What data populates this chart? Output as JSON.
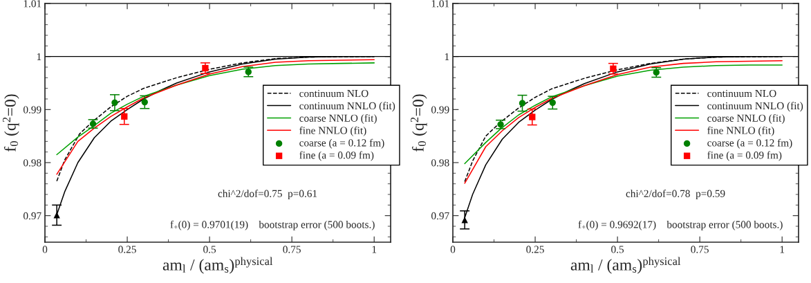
{
  "chart_data": [
    {
      "type": "line",
      "xlabel": "am$_{l}$ / (am$_{s}$)$^{physical}$",
      "ylabel": "f$_{0}$ (q$^{2}$=0)",
      "xlim": [
        0,
        1.05
      ],
      "ylim": [
        0.965,
        1.01
      ],
      "xticks": [
        0,
        0.25,
        0.5,
        0.75,
        1
      ],
      "yticks": [
        0.97,
        0.98,
        0.99,
        1,
        1.01
      ],
      "grid": false,
      "legend": "right",
      "ref_lines": [
        {
          "axis": "y",
          "value": 1,
          "color": "#000000",
          "line_style": "solid"
        }
      ],
      "annotations": [
        "chi^2/dof=0.75  p=0.61",
        "f$_{+}$(0) = 0.9701(19)    bootstrap error (500 boots.)"
      ],
      "series": [
        {
          "name": "continuum NLO",
          "color": "#000000",
          "line_style": "dashed",
          "x": [
            0.036,
            0.06,
            0.105,
            0.146,
            0.2,
            0.25,
            0.3,
            0.4,
            0.5,
            0.6,
            0.7,
            0.8,
            1.0
          ],
          "values": [
            0.9765,
            0.9805,
            0.9854,
            0.9878,
            0.9905,
            0.9925,
            0.994,
            0.996,
            0.9976,
            0.9988,
            0.9996,
            0.9999,
            1.0
          ]
        },
        {
          "name": "continuum NNLO (fit)",
          "color": "#000000",
          "line_style": "solid",
          "x": [
            0.036,
            0.06,
            0.1,
            0.15,
            0.2,
            0.25,
            0.3,
            0.35,
            0.4,
            0.5,
            0.6,
            0.7,
            0.8,
            0.9,
            1.0
          ],
          "values": [
            0.9702,
            0.9745,
            0.98,
            0.9847,
            0.9878,
            0.99,
            0.992,
            0.9936,
            0.995,
            0.9971,
            0.9986,
            0.9995,
            0.9999,
            1.0,
            1.0
          ]
        },
        {
          "name": "coarse NNLO (fit)",
          "color": "#00a000",
          "line_style": "solid",
          "x": [
            0.036,
            0.1,
            0.146,
            0.2,
            0.25,
            0.3,
            0.4,
            0.5,
            0.6,
            0.7,
            0.8,
            0.9,
            1.0
          ],
          "values": [
            0.9815,
            0.9848,
            0.9868,
            0.9893,
            0.991,
            0.9925,
            0.9946,
            0.9964,
            0.9976,
            0.9983,
            0.9986,
            0.9987,
            0.9988
          ]
        },
        {
          "name": "fine NNLO (fit)",
          "color": "#ff0000",
          "line_style": "solid",
          "x": [
            0.036,
            0.1,
            0.15,
            0.2,
            0.25,
            0.3,
            0.4,
            0.5,
            0.6,
            0.7,
            0.8,
            1.0
          ],
          "values": [
            0.9778,
            0.984,
            0.9865,
            0.9887,
            0.9905,
            0.9922,
            0.9946,
            0.9967,
            0.9981,
            0.9989,
            0.9992,
            0.9994
          ]
        },
        {
          "name": "coarse (a = 0.12 fm)",
          "type": "scatter",
          "color": "#008000",
          "marker": "circle",
          "x": [
            0.146,
            0.212,
            0.303,
            0.618
          ],
          "values": [
            0.9873,
            0.9913,
            0.9914,
            0.9971
          ],
          "errors": [
            0.0008,
            0.0015,
            0.0012,
            0.0009
          ]
        },
        {
          "name": "fine (a = 0.09 fm)",
          "type": "scatter",
          "color": "#ff0000",
          "marker": "square",
          "x": [
            0.241,
            0.487
          ],
          "values": [
            0.9887,
            0.9978
          ],
          "errors": [
            0.0015,
            0.001
          ]
        },
        {
          "type": "scatter",
          "color": "#000000",
          "marker": "triangle",
          "x": [
            0.036
          ],
          "values": [
            0.9701
          ],
          "errors": [
            0.0019
          ]
        }
      ]
    },
    {
      "type": "line",
      "xlabel": "am$_{l}$ / (am$_{s}$)$^{physical}$",
      "ylabel": "f$_{0}$ (q$^{2}$=0)",
      "xlim": [
        0,
        1.05
      ],
      "ylim": [
        0.965,
        1.01
      ],
      "xticks": [
        0,
        0.25,
        0.5,
        0.75,
        1
      ],
      "yticks": [
        0.97,
        0.98,
        0.99,
        1,
        1.01
      ],
      "grid": false,
      "legend": "right",
      "ref_lines": [
        {
          "axis": "y",
          "value": 1,
          "color": "#000000",
          "line_style": "solid"
        }
      ],
      "annotations": [
        "chi^2/dof=0.78  p=0.59",
        "f$_{+}$(0) = 0.9692(17)    bootstrap error (500 boots.)"
      ],
      "series": [
        {
          "name": "continuum NLO",
          "color": "#000000",
          "line_style": "dashed",
          "x": [
            0.036,
            0.06,
            0.1,
            0.146,
            0.2,
            0.25,
            0.3,
            0.4,
            0.5,
            0.6,
            0.7,
            0.8,
            1.0
          ],
          "values": [
            0.9764,
            0.9803,
            0.985,
            0.9877,
            0.9903,
            0.9923,
            0.9939,
            0.9959,
            0.9975,
            0.9987,
            0.9995,
            0.9999,
            1.0
          ]
        },
        {
          "name": "continuum NNLO (fit)",
          "color": "#000000",
          "line_style": "solid",
          "x": [
            0.036,
            0.06,
            0.1,
            0.15,
            0.2,
            0.25,
            0.3,
            0.35,
            0.4,
            0.5,
            0.6,
            0.7,
            0.8,
            0.9,
            1.0
          ],
          "values": [
            0.9696,
            0.974,
            0.9796,
            0.9844,
            0.9876,
            0.9899,
            0.9919,
            0.9935,
            0.9949,
            0.9971,
            0.9986,
            0.9995,
            0.9999,
            1.0,
            1.0
          ]
        },
        {
          "name": "coarse NNLO (fit)",
          "color": "#00a000",
          "line_style": "solid",
          "x": [
            0.036,
            0.1,
            0.146,
            0.2,
            0.25,
            0.3,
            0.4,
            0.5,
            0.6,
            0.7,
            0.8,
            0.9,
            1.0
          ],
          "values": [
            0.9798,
            0.9838,
            0.9864,
            0.989,
            0.9908,
            0.9924,
            0.9945,
            0.9963,
            0.9974,
            0.998,
            0.9983,
            0.9984,
            0.9984
          ]
        },
        {
          "name": "fine NNLO (fit)",
          "color": "#ff0000",
          "line_style": "solid",
          "x": [
            0.036,
            0.1,
            0.15,
            0.2,
            0.25,
            0.3,
            0.4,
            0.5,
            0.6,
            0.7,
            0.8,
            1.0
          ],
          "values": [
            0.9761,
            0.983,
            0.986,
            0.9885,
            0.9904,
            0.9921,
            0.9945,
            0.9966,
            0.998,
            0.9987,
            0.999,
            0.9992
          ]
        },
        {
          "name": "coarse (a = 0.12 fm)",
          "type": "scatter",
          "color": "#008000",
          "marker": "circle",
          "x": [
            0.145,
            0.211,
            0.303,
            0.618
          ],
          "values": [
            0.9872,
            0.9912,
            0.9913,
            0.997
          ],
          "errors": [
            0.0008,
            0.0015,
            0.0012,
            0.0009
          ]
        },
        {
          "name": "fine (a = 0.09 fm)",
          "type": "scatter",
          "color": "#ff0000",
          "marker": "square",
          "x": [
            0.241,
            0.487
          ],
          "values": [
            0.9886,
            0.9977
          ],
          "errors": [
            0.0015,
            0.001
          ]
        },
        {
          "type": "scatter",
          "color": "#000000",
          "marker": "triangle",
          "x": [
            0.036
          ],
          "values": [
            0.9692
          ],
          "errors": [
            0.0017
          ]
        }
      ]
    }
  ]
}
